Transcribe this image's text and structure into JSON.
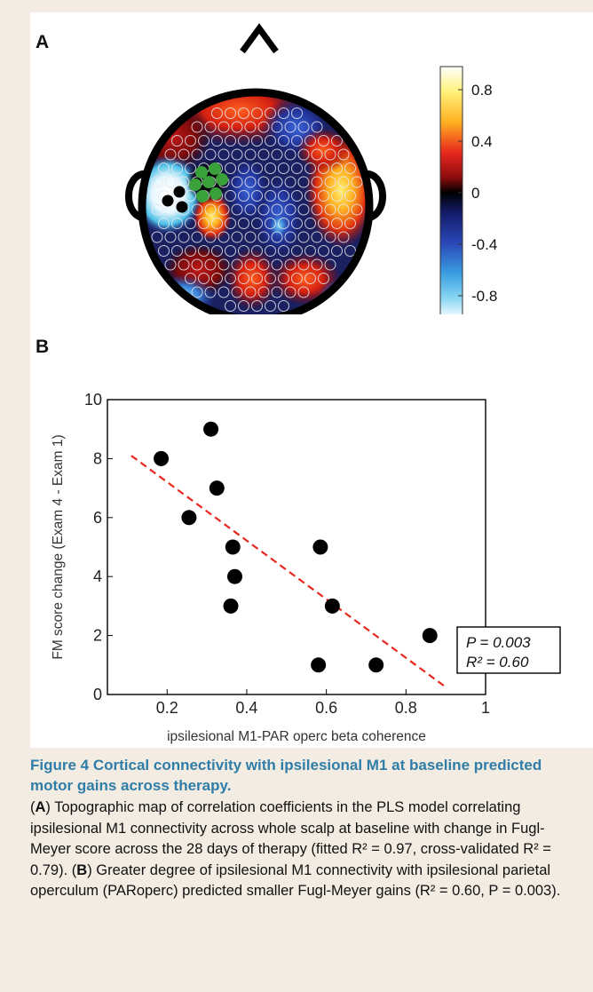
{
  "panel_a": {
    "label": "A",
    "colorbar_ticks": [
      "0.8",
      "0.4",
      "0",
      "-0.4",
      "-0.8"
    ]
  },
  "panel_b": {
    "label": "B",
    "stats_p": "P = 0.003",
    "stats_r2": "R² = 0.60"
  },
  "chart_data": {
    "type": "scatter",
    "xlabel": "ipsilesional M1-PAR operc beta coherence",
    "ylabel": "FM score change (Exam 4 - Exam 1)",
    "xlim": [
      0.05,
      1.0
    ],
    "ylim": [
      0,
      10
    ],
    "xticks": [
      "0.2",
      "0.4",
      "0.6",
      "0.8",
      "1"
    ],
    "yticks": [
      "0",
      "2",
      "4",
      "6",
      "8",
      "10"
    ],
    "points": [
      {
        "x": 0.185,
        "y": 8
      },
      {
        "x": 0.31,
        "y": 9
      },
      {
        "x": 0.325,
        "y": 7
      },
      {
        "x": 0.255,
        "y": 6
      },
      {
        "x": 0.365,
        "y": 5
      },
      {
        "x": 0.37,
        "y": 4
      },
      {
        "x": 0.36,
        "y": 3
      },
      {
        "x": 0.585,
        "y": 5
      },
      {
        "x": 0.615,
        "y": 3
      },
      {
        "x": 0.58,
        "y": 1
      },
      {
        "x": 0.725,
        "y": 1
      },
      {
        "x": 0.86,
        "y": 2
      }
    ],
    "fit_line": {
      "x": [
        0.11,
        0.9
      ],
      "y": [
        8.1,
        0.25
      ],
      "color": "#e8281e"
    }
  },
  "caption": {
    "title": "Figure 4 Cortical connectivity with ipsilesional M1 at baseline predicted motor gains across therapy.",
    "a_label": "A",
    "a_text": ") Topographic map of correlation coefficients in the PLS model correlating ipsilesional M1 connectivity across whole scalp at baseline with change in Fugl-Meyer score across the 28 days of therapy (fitted R² = 0.97, cross-validated R² = 0.79). (",
    "b_label": "B",
    "b_text": ") Greater degree of ipsilesional M1 connectivity with ipsilesional parietal operculum (PARoperc) predicted smaller Fugl-Meyer gains (R² = 0.60, P = 0.003)."
  },
  "colors": {
    "caption_title": "#2f7da8",
    "caption_background": "#f3ece2",
    "fit_line": "#e8281e"
  }
}
